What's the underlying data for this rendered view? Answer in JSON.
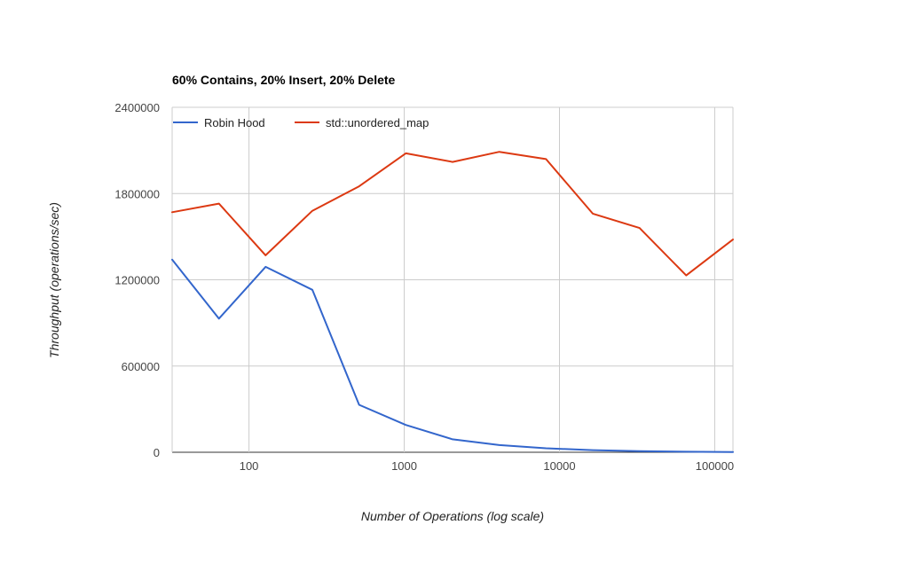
{
  "chart_data": {
    "type": "line",
    "title": "60% Contains, 20% Insert, 20% Delete",
    "xlabel": "Number of Operations (log scale)",
    "ylabel": "Throughput (operations/sec)",
    "x_scale": "log",
    "xlim": [
      32,
      131072
    ],
    "ylim": [
      0,
      2400000
    ],
    "x_ticks": [
      100,
      1000,
      10000,
      100000
    ],
    "x_tick_labels": [
      "100",
      "1000",
      "10000",
      "100000"
    ],
    "y_ticks": [
      0,
      600000,
      1200000,
      1800000,
      2400000
    ],
    "y_tick_labels": [
      "0",
      "600000",
      "1200000",
      "1800000",
      "2400000"
    ],
    "grid": true,
    "legend_position": "top-left",
    "x": [
      32,
      64,
      128,
      256,
      512,
      1024,
      2048,
      4096,
      8192,
      16384,
      32768,
      65536,
      131072
    ],
    "series": [
      {
        "name": "Robin Hood",
        "color": "#3366cc",
        "values": [
          1340000,
          930000,
          1290000,
          1130000,
          330000,
          190000,
          90000,
          50000,
          28000,
          15000,
          8000,
          4000,
          2000
        ]
      },
      {
        "name": "std::unordered_map",
        "color": "#dc3912",
        "values": [
          1670000,
          1730000,
          1370000,
          1680000,
          1850000,
          2080000,
          2020000,
          2090000,
          2040000,
          1660000,
          1560000,
          1230000,
          1480000
        ]
      }
    ]
  }
}
